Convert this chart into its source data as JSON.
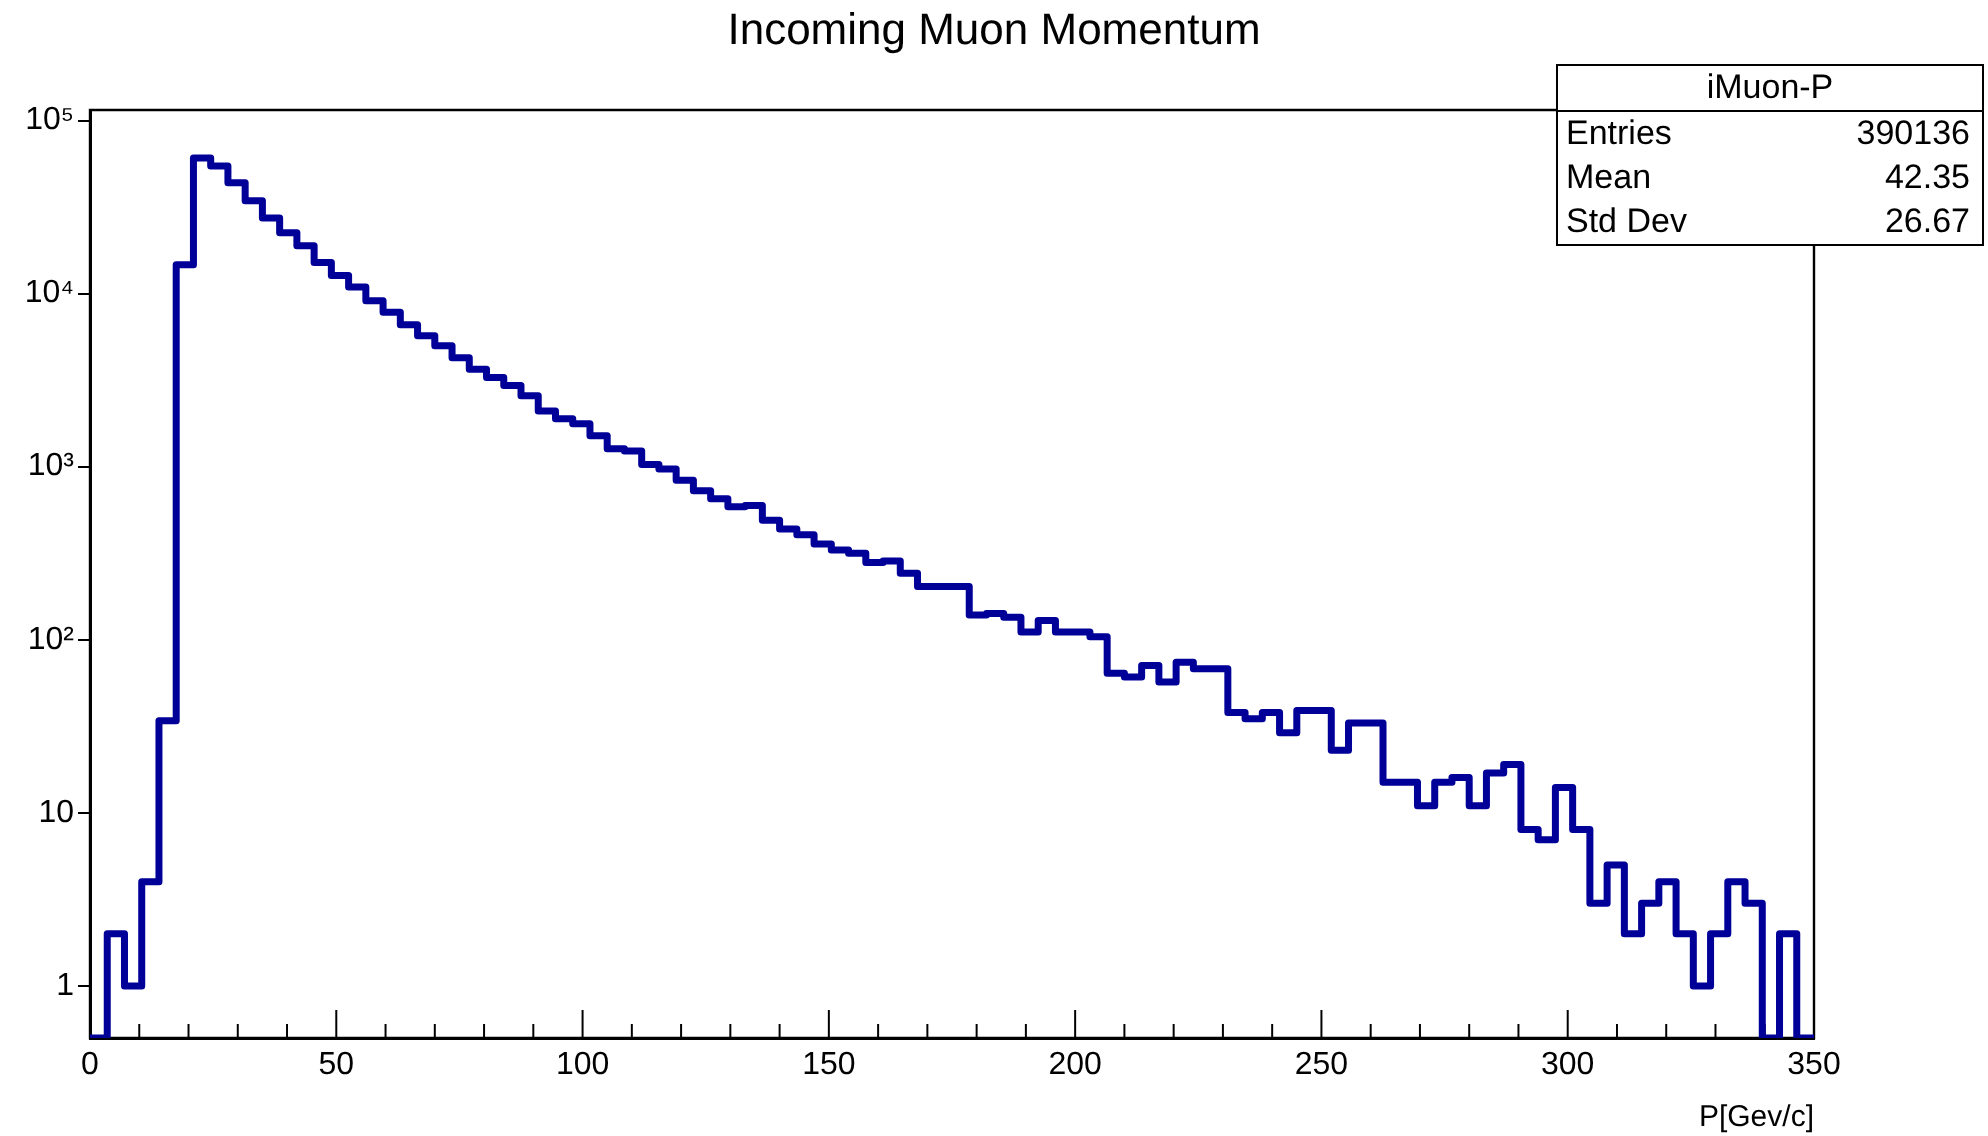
{
  "chart_data": {
    "type": "histogram",
    "title": "Incoming Muon Momentum",
    "xlabel": "P[Gev/c]",
    "annotations": [
      "iMuon-P",
      "Entries",
      "390136",
      "Mean",
      "42.35",
      "Std Dev",
      "26.67"
    ],
    "bins": [
      0,
      3.5,
      7,
      10.5,
      14,
      17.5,
      21,
      24.5,
      28,
      31.5,
      35,
      38.5,
      42,
      45.5,
      49,
      52.5,
      56,
      59.5,
      63,
      66.5,
      70,
      73.5,
      77,
      80.5,
      84,
      87.5,
      91,
      94.5,
      98,
      101.5,
      105,
      108.5,
      112,
      115.5,
      119,
      122.5,
      126,
      129.5,
      133,
      136.5,
      140,
      143.5,
      147,
      150.5,
      154,
      157.5,
      161,
      164.5,
      168,
      171.5,
      175,
      178.5,
      182,
      185.5,
      189,
      192.5,
      196,
      199.5,
      203,
      206.5,
      210,
      213.5,
      217,
      220.5,
      224,
      227.5,
      231,
      234.5,
      238,
      241.5,
      245,
      248.5,
      252,
      255.5,
      259,
      262.5,
      266,
      269.5,
      273,
      276.5,
      280,
      283.5,
      287,
      290.5,
      294,
      297.5,
      301,
      304.5,
      308,
      311.5,
      315,
      318.5,
      322,
      325.5,
      329,
      332.5,
      336,
      339.5,
      343,
      346.5,
      350
    ],
    "values": [
      null,
      2,
      1,
      4,
      34,
      14700,
      60700,
      54600,
      43700,
      34400,
      27300,
      22500,
      18900,
      15100,
      12700,
      10900,
      9100,
      7800,
      6600,
      5700,
      5000,
      4260,
      3660,
      3270,
      2940,
      2570,
      2100,
      1890,
      1770,
      1510,
      1270,
      1230,
      1030,
      970,
      835,
      725,
      652,
      586,
      597,
      490,
      437,
      404,
      357,
      330,
      316,
      279,
      285,
      242,
      203,
      203,
      203,
      139,
      142,
      135,
      111,
      129,
      111,
      111,
      104,
      64,
      61,
      71,
      57,
      74,
      68,
      68,
      38,
      35,
      38,
      29,
      39,
      39,
      23,
      33,
      33,
      15,
      15,
      11,
      15,
      16,
      11,
      17,
      19,
      8,
      7,
      14,
      8,
      3,
      5,
      2,
      3,
      4,
      2,
      1,
      2,
      4,
      3,
      null,
      2,
      null
    ],
    "color": "#000099",
    "log": true,
    "grid": false,
    "legend": false,
    "xlim": [
      0,
      350
    ],
    "xticks": [
      0,
      {
        "value": 10,
        "label": null
      },
      {
        "value": 20,
        "label": null
      },
      {
        "value": 30,
        "label": null
      },
      {
        "value": 40,
        "label": null
      },
      50,
      {
        "value": 60,
        "label": null
      },
      {
        "value": 70,
        "label": null
      },
      {
        "value": 80,
        "label": null
      },
      {
        "value": 90,
        "label": null
      },
      100,
      {
        "value": 110,
        "label": null
      },
      {
        "value": 120,
        "label": null
      },
      {
        "value": 130,
        "label": null
      },
      {
        "value": 140,
        "label": null
      },
      150,
      {
        "value": 160,
        "label": null
      },
      {
        "value": 170,
        "label": null
      },
      {
        "value": 180,
        "label": null
      },
      {
        "value": 190,
        "label": null
      },
      200,
      {
        "value": 210,
        "label": null
      },
      {
        "value": 220,
        "label": null
      },
      {
        "value": 230,
        "label": null
      },
      {
        "value": 240,
        "label": null
      },
      250,
      {
        "value": 260,
        "label": null
      },
      {
        "value": 270,
        "label": null
      },
      {
        "value": 280,
        "label": null
      },
      {
        "value": 290,
        "label": null
      },
      300,
      {
        "value": 310,
        "label": null
      },
      {
        "value": 320,
        "label": null
      },
      {
        "value": 330,
        "label": null
      },
      {
        "value": 340,
        "label": null
      },
      350
    ],
    "ylim": [
      0.5,
      115000
    ],
    "yticks": [
      1,
      10,
      {
        "value": 100,
        "label": "10²"
      },
      {
        "value": 1000,
        "label": "10³"
      },
      {
        "value": 10000,
        "label": "10⁴"
      },
      {
        "value": 100000,
        "label": "10⁵"
      }
    ]
  }
}
